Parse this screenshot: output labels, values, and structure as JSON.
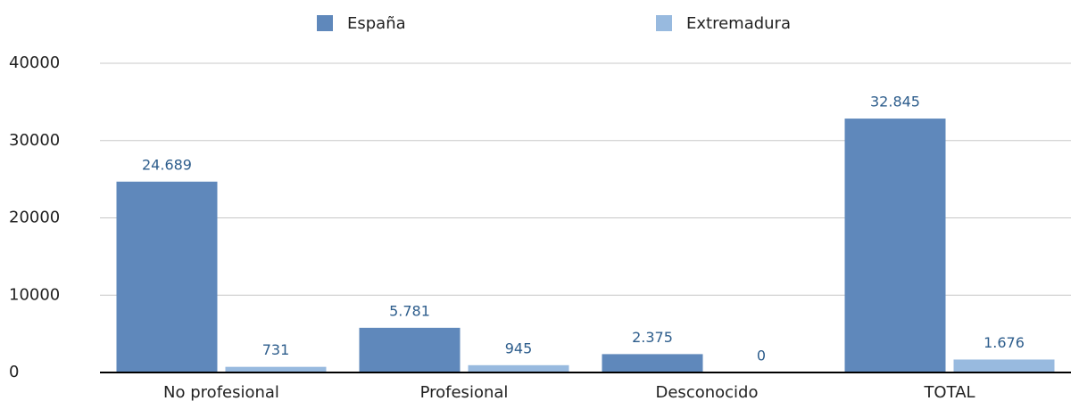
{
  "chart_data": {
    "type": "bar",
    "categories": [
      "No profesional",
      "Profesional",
      "Desconocido",
      "TOTAL"
    ],
    "series": [
      {
        "name": "España",
        "color": "#5f88bb",
        "values": [
          24689,
          5781,
          2375,
          32845
        ],
        "value_labels": [
          "24.689",
          "5.781",
          "2.375",
          "32.845"
        ]
      },
      {
        "name": "Extremadura",
        "color": "#98badf",
        "values": [
          731,
          945,
          0,
          1676
        ],
        "value_labels": [
          "731",
          "945",
          "0",
          "1.676"
        ]
      }
    ],
    "ylim": [
      0,
      40000
    ],
    "yticks": [
      0,
      10000,
      20000,
      30000,
      40000
    ],
    "grid": true,
    "legend": "top"
  }
}
